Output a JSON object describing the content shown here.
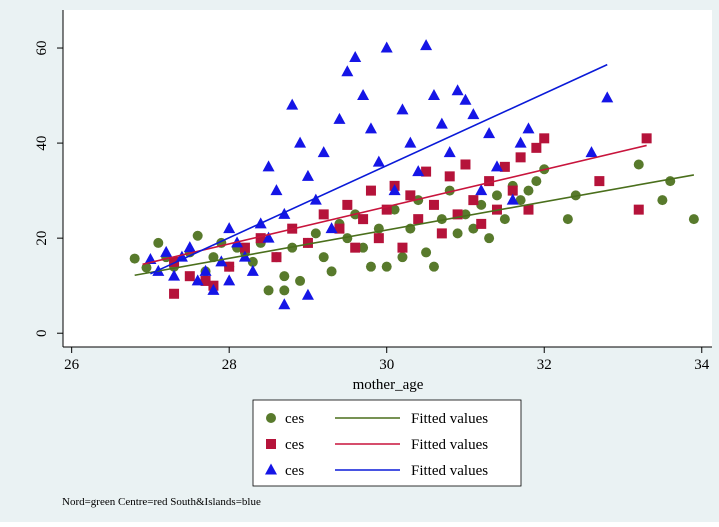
{
  "chart_data": {
    "type": "scatter",
    "x_label": "mother_age",
    "note": "Nord=green Centre=red South&Islands=blue",
    "xlim": [
      25.89,
      34.13
    ],
    "xticks": [
      26,
      28,
      30,
      32,
      34
    ],
    "ylim": [
      -2.9,
      68
    ],
    "yticks": [
      0,
      20,
      40,
      60
    ],
    "series": [
      {
        "name": "ces",
        "color": "#587a2c",
        "marker": "circle",
        "x": [
          26.8,
          26.95,
          27.1,
          27.2,
          27.3,
          27.5,
          27.6,
          27.7,
          27.8,
          27.9,
          28.0,
          28.1,
          28.2,
          28.3,
          28.4,
          28.5,
          28.6,
          28.7,
          28.7,
          28.8,
          28.9,
          29.0,
          29.1,
          29.2,
          29.3,
          29.4,
          29.5,
          29.6,
          29.7,
          29.8,
          29.9,
          30.0,
          30.1,
          30.2,
          30.3,
          30.4,
          30.5,
          30.6,
          30.7,
          30.8,
          30.9,
          31.0,
          31.1,
          31.2,
          31.3,
          31.4,
          31.5,
          31.6,
          31.7,
          31.8,
          31.9,
          32.0,
          32.3,
          32.4,
          33.2,
          33.5,
          33.6,
          33.9
        ],
        "values": [
          15.7,
          13.8,
          19,
          16,
          14,
          17,
          20.5,
          13,
          16,
          19,
          14,
          18,
          17,
          15,
          19,
          9,
          16,
          12,
          9,
          18,
          11,
          19,
          21,
          16,
          13,
          23,
          20,
          25,
          18,
          14,
          22,
          14,
          26,
          16,
          22,
          28,
          17,
          14,
          24,
          30,
          21,
          25,
          22,
          27,
          20,
          29,
          24,
          31,
          28,
          30,
          32,
          34.5,
          24,
          29,
          35.5,
          28,
          32,
          24
        ]
      },
      {
        "name": "ces",
        "color": "#b5133a",
        "marker": "square",
        "x": [
          27.3,
          27.3,
          27.5,
          27.7,
          27.8,
          28.0,
          28.2,
          28.4,
          28.6,
          28.8,
          29.0,
          29.2,
          29.4,
          29.5,
          29.6,
          29.7,
          29.8,
          29.9,
          30.0,
          30.1,
          30.2,
          30.3,
          30.4,
          30.5,
          30.6,
          30.7,
          30.8,
          30.9,
          31.0,
          31.1,
          31.2,
          31.3,
          31.4,
          31.5,
          31.6,
          31.7,
          31.8,
          31.9,
          32.0,
          32.7,
          33.2,
          33.3
        ],
        "values": [
          8.3,
          15,
          12,
          11,
          10,
          14,
          18,
          20,
          16,
          22,
          19,
          25,
          22,
          27,
          18,
          24,
          30,
          20,
          26,
          31,
          18,
          29,
          24,
          34,
          27,
          21,
          33,
          25,
          35.5,
          28,
          23,
          32,
          26,
          35,
          30,
          37,
          26,
          39,
          41,
          32,
          26,
          41
        ]
      },
      {
        "name": "ces",
        "color": "#1515e6",
        "marker": "triangle",
        "x": [
          27.0,
          27.1,
          27.2,
          27.3,
          27.4,
          27.5,
          27.6,
          27.7,
          27.8,
          27.9,
          28.0,
          28.0,
          28.1,
          28.2,
          28.3,
          28.4,
          28.5,
          28.5,
          28.6,
          28.7,
          28.7,
          28.8,
          28.9,
          29.0,
          29.0,
          29.1,
          29.2,
          29.3,
          29.4,
          29.5,
          29.6,
          29.7,
          29.8,
          29.9,
          30.0,
          30.1,
          30.2,
          30.3,
          30.4,
          30.5,
          30.6,
          30.7,
          30.8,
          30.9,
          31.0,
          31.1,
          31.2,
          31.3,
          31.4,
          31.6,
          31.7,
          31.8,
          32.6,
          32.8
        ],
        "values": [
          15.5,
          13,
          17,
          12,
          16,
          18,
          11,
          13,
          9,
          15,
          22,
          11,
          19,
          16,
          13,
          23,
          20,
          35,
          30,
          25,
          6,
          48,
          40,
          33,
          8,
          28,
          38,
          22,
          45,
          55,
          58,
          50,
          43,
          36,
          60,
          30,
          47,
          40,
          34,
          60.5,
          50,
          44,
          38,
          51,
          49,
          46,
          30,
          42,
          35,
          28,
          40,
          43,
          38,
          49.5
        ]
      },
      {
        "name": "Fitted values",
        "type": "line",
        "color": "#4a6f1c",
        "x": [
          26.8,
          33.9
        ],
        "values": [
          12.2,
          33.3
        ]
      },
      {
        "name": "Fitted values",
        "type": "line",
        "color": "#c8143c",
        "x": [
          26.9,
          33.3
        ],
        "values": [
          14.5,
          39.5
        ]
      },
      {
        "name": "Fitted values",
        "type": "line",
        "color": "#0a1ad8",
        "x": [
          27.0,
          32.8
        ],
        "values": [
          12.5,
          56.5
        ]
      }
    ]
  }
}
